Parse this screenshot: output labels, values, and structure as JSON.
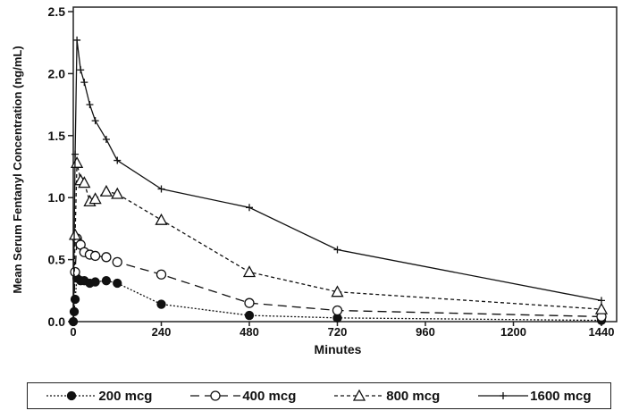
{
  "chart_data": {
    "type": "line",
    "title": "",
    "xlabel": "Minutes",
    "ylabel": "Mean Serum Fentanyl Concentration (ng/mL)",
    "xlim": [
      0,
      1440
    ],
    "ylim": [
      0,
      2.5
    ],
    "xticks": [
      "0",
      "240",
      "480",
      "720",
      "960",
      "1200",
      "1440"
    ],
    "yticks": [
      "0.0",
      "0.5",
      "1.0",
      "1.5",
      "2.0",
      "2.5"
    ],
    "legend_position": "bottom",
    "series": [
      {
        "name": "200 mcg",
        "marker": "filled-circle",
        "dash": "2,2",
        "x": [
          0,
          2.5,
          5,
          10,
          20,
          30,
          45,
          60,
          90,
          120,
          240,
          480,
          720,
          1440
        ],
        "y": [
          0,
          0.08,
          0.18,
          0.35,
          0.33,
          0.33,
          0.31,
          0.32,
          0.33,
          0.31,
          0.14,
          0.05,
          0.03,
          0.01
        ]
      },
      {
        "name": "400 mcg",
        "marker": "open-circle",
        "dash": "10,6",
        "x": [
          0,
          5,
          10,
          20,
          30,
          45,
          60,
          90,
          120,
          240,
          480,
          720,
          1440
        ],
        "y": [
          0,
          0.4,
          0.67,
          0.62,
          0.56,
          0.54,
          0.53,
          0.52,
          0.48,
          0.38,
          0.15,
          0.09,
          0.04
        ]
      },
      {
        "name": "800 mcg",
        "marker": "open-triangle",
        "dash": "4,3",
        "x": [
          0,
          5,
          10,
          20,
          30,
          45,
          60,
          90,
          120,
          240,
          480,
          720,
          1440
        ],
        "y": [
          0,
          0.7,
          1.28,
          1.14,
          1.12,
          0.97,
          0.99,
          1.05,
          1.03,
          0.82,
          0.4,
          0.24,
          0.1
        ]
      },
      {
        "name": "1600 mcg",
        "marker": "plus",
        "dash": "",
        "x": [
          0,
          5,
          10,
          20,
          30,
          45,
          60,
          90,
          120,
          240,
          480,
          720,
          1440
        ],
        "y": [
          0,
          1.35,
          2.27,
          2.03,
          1.93,
          1.75,
          1.62,
          1.47,
          1.3,
          1.07,
          0.92,
          0.58,
          0.17
        ]
      }
    ]
  }
}
